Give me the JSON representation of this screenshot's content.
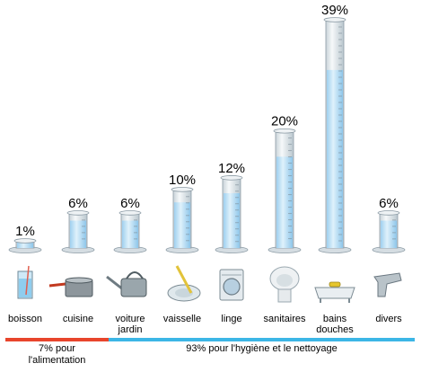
{
  "chart_data": {
    "type": "bar",
    "unit": "%",
    "categories": [
      [
        "boisson"
      ],
      [
        "cuisine"
      ],
      [
        "voiture",
        "jardin"
      ],
      [
        "vaisselle"
      ],
      [
        "linge"
      ],
      [
        "sanitaires"
      ],
      [
        "bains",
        "douches"
      ],
      [
        "divers"
      ]
    ],
    "values": [
      1,
      6,
      6,
      10,
      12,
      20,
      39,
      6
    ],
    "value_labels": [
      "1%",
      "6%",
      "6%",
      "10%",
      "12%",
      "20%",
      "39%",
      "6%"
    ],
    "icons": [
      "glass-icon",
      "cooking-pot-icon",
      "watering-can-icon",
      "dish-icon",
      "washing-machine-icon",
      "toilet-icon",
      "bathtub-icon",
      "faucet-icon"
    ],
    "groups": [
      {
        "label": "7% pour\nl'alimentation",
        "color": "#e8452c",
        "from": 0,
        "to": 1
      },
      {
        "label": "93% pour l'hygiène et le nettoyage",
        "color": "#3cb6e6",
        "from": 2,
        "to": 7
      }
    ],
    "ylim": [
      0,
      39
    ],
    "legend": "none",
    "grid": false
  },
  "colors": {
    "water": "#bfe2f7",
    "glass": "#e4ebef",
    "outline": "#8c9ba5"
  }
}
